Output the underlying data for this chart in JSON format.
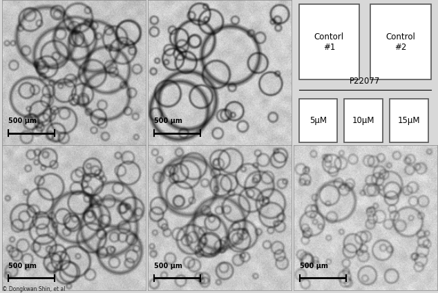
{
  "fig_width": 6.34,
  "fig_height": 4.24,
  "bg_color": "#d8d8d8",
  "scale_bar_label": "500 μm",
  "credit_text": "© Dongkwan Shin, et al",
  "top_row_labels": [
    "Contorl\n#1",
    "Control\n#2"
  ],
  "p22077_label": "P22077",
  "bottom_row_labels": [
    "5μM",
    "10μM",
    "15μM"
  ],
  "credit_fontsize": 5.5,
  "scalebar_fontsize": 7,
  "legend_label_fontsize": 8.5,
  "p22077_fontsize": 8.5
}
